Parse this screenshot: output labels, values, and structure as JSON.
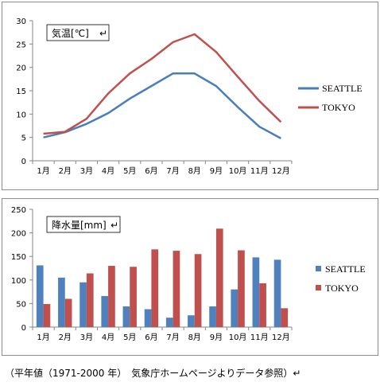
{
  "chart_data": [
    {
      "type": "line",
      "inner_title": "気温[℃]",
      "return_mark": "↵",
      "categories": [
        "1月",
        "2月",
        "3月",
        "4月",
        "5月",
        "6月",
        "7月",
        "8月",
        "9月",
        "10月",
        "11月",
        "12月"
      ],
      "yticks": [
        "0",
        "5",
        "10",
        "15",
        "20",
        "25",
        "30"
      ],
      "ylim": [
        0,
        30
      ],
      "grid": false,
      "legend_position": "right",
      "series": [
        {
          "name": "SEATTLE",
          "color": "#4a7ebb",
          "values": [
            5,
            6.1,
            7.9,
            10.2,
            13.3,
            16,
            18.7,
            18.7,
            16,
            11.5,
            7.3,
            4.8
          ]
        },
        {
          "name": "TOKYO",
          "color": "#c0504d",
          "values": [
            5.8,
            6.2,
            9.0,
            14.4,
            18.7,
            21.8,
            25.4,
            27.1,
            23.3,
            18.0,
            12.8,
            8.3
          ]
        }
      ]
    },
    {
      "type": "bar",
      "inner_title": "降水量[mm]",
      "return_mark": "↵",
      "categories": [
        "1月",
        "2月",
        "3月",
        "4月",
        "5月",
        "6月",
        "7月",
        "8月",
        "9月",
        "10月",
        "11月",
        "12月"
      ],
      "yticks": [
        "0",
        "50",
        "100",
        "150",
        "200",
        "250"
      ],
      "ylim": [
        0,
        250
      ],
      "grid": false,
      "legend_position": "right",
      "series": [
        {
          "name": "SEATTLE",
          "color": "#4f81bd",
          "values": [
            131,
            105,
            95,
            66,
            44,
            38,
            20,
            25,
            44,
            80,
            148,
            143
          ]
        },
        {
          "name": "TOKYO",
          "color": "#c0504d",
          "values": [
            49,
            60,
            114,
            130,
            128,
            165,
            162,
            155,
            209,
            163,
            93,
            40
          ]
        }
      ]
    }
  ],
  "footnote": "（平年値（1971-2000 年）　気象庁ホームページよりデータ参照）↵"
}
